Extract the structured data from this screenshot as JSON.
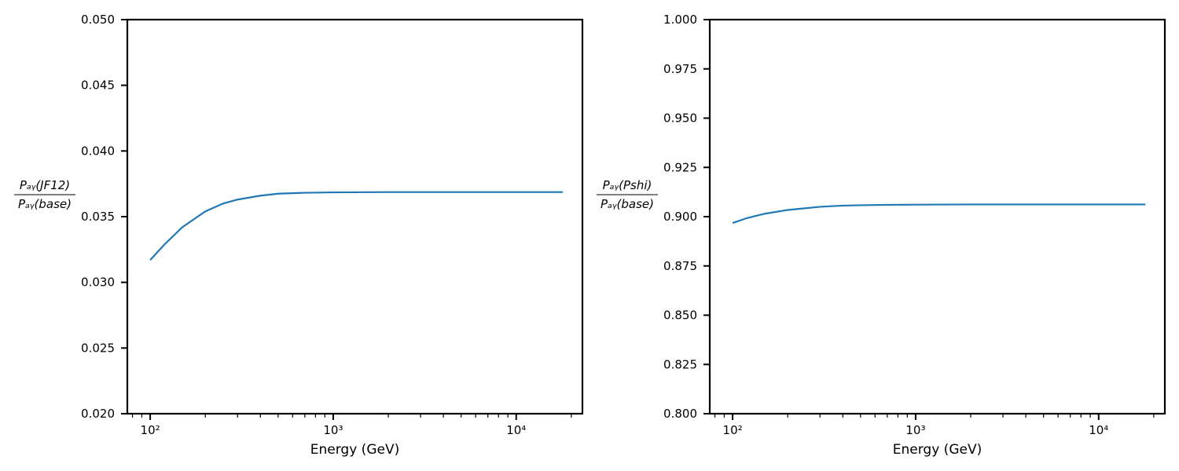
{
  "chart_data": [
    {
      "type": "line",
      "xscale": "log",
      "xlim": [
        75,
        23000
      ],
      "ylim": [
        0.02,
        0.05
      ],
      "yticks": [
        0.02,
        0.025,
        0.03,
        0.035,
        0.04,
        0.045,
        0.05
      ],
      "ytick_labels": [
        "0.020",
        "0.025",
        "0.030",
        "0.035",
        "0.040",
        "0.045",
        "0.050"
      ],
      "xtick_labels": [
        "10²",
        "10³",
        "10⁴"
      ],
      "xtick_values": [
        100,
        1000,
        10000
      ],
      "xlabel": "Energy (GeV)",
      "ylabel_num": "Pₐᵧ(JF12)",
      "ylabel_den": "Pₐᵧ(base)",
      "series": [
        {
          "color": "#1f77b4",
          "x": [
            100,
            120,
            150,
            200,
            250,
            300,
            400,
            500,
            700,
            1000,
            2000,
            5000,
            10000,
            18000
          ],
          "y": [
            0.0317,
            0.0329,
            0.0342,
            0.0354,
            0.036,
            0.0363,
            0.0366,
            0.03675,
            0.03682,
            0.03685,
            0.03687,
            0.03687,
            0.03687,
            0.03687
          ]
        }
      ]
    },
    {
      "type": "line",
      "xscale": "log",
      "xlim": [
        75,
        23000
      ],
      "ylim": [
        0.8,
        1.0
      ],
      "yticks": [
        0.8,
        0.825,
        0.85,
        0.875,
        0.9,
        0.925,
        0.95,
        0.975,
        1.0
      ],
      "ytick_labels": [
        "0.800",
        "0.825",
        "0.850",
        "0.875",
        "0.900",
        "0.925",
        "0.950",
        "0.975",
        "1.000"
      ],
      "xtick_labels": [
        "10²",
        "10³",
        "10⁴"
      ],
      "xtick_values": [
        100,
        1000,
        10000
      ],
      "xlabel": "Energy (GeV)",
      "ylabel_num": "Pₐᵧ(Pshi)",
      "ylabel_den": "Pₐᵧ(base)",
      "series": [
        {
          "color": "#1f77b4",
          "x": [
            100,
            120,
            150,
            200,
            300,
            400,
            500,
            700,
            1000,
            2000,
            5000,
            10000,
            18000
          ],
          "y": [
            0.8968,
            0.8993,
            0.9015,
            0.9034,
            0.905,
            0.9056,
            0.9058,
            0.906,
            0.9061,
            0.9062,
            0.9062,
            0.9062,
            0.9062
          ]
        }
      ]
    }
  ]
}
